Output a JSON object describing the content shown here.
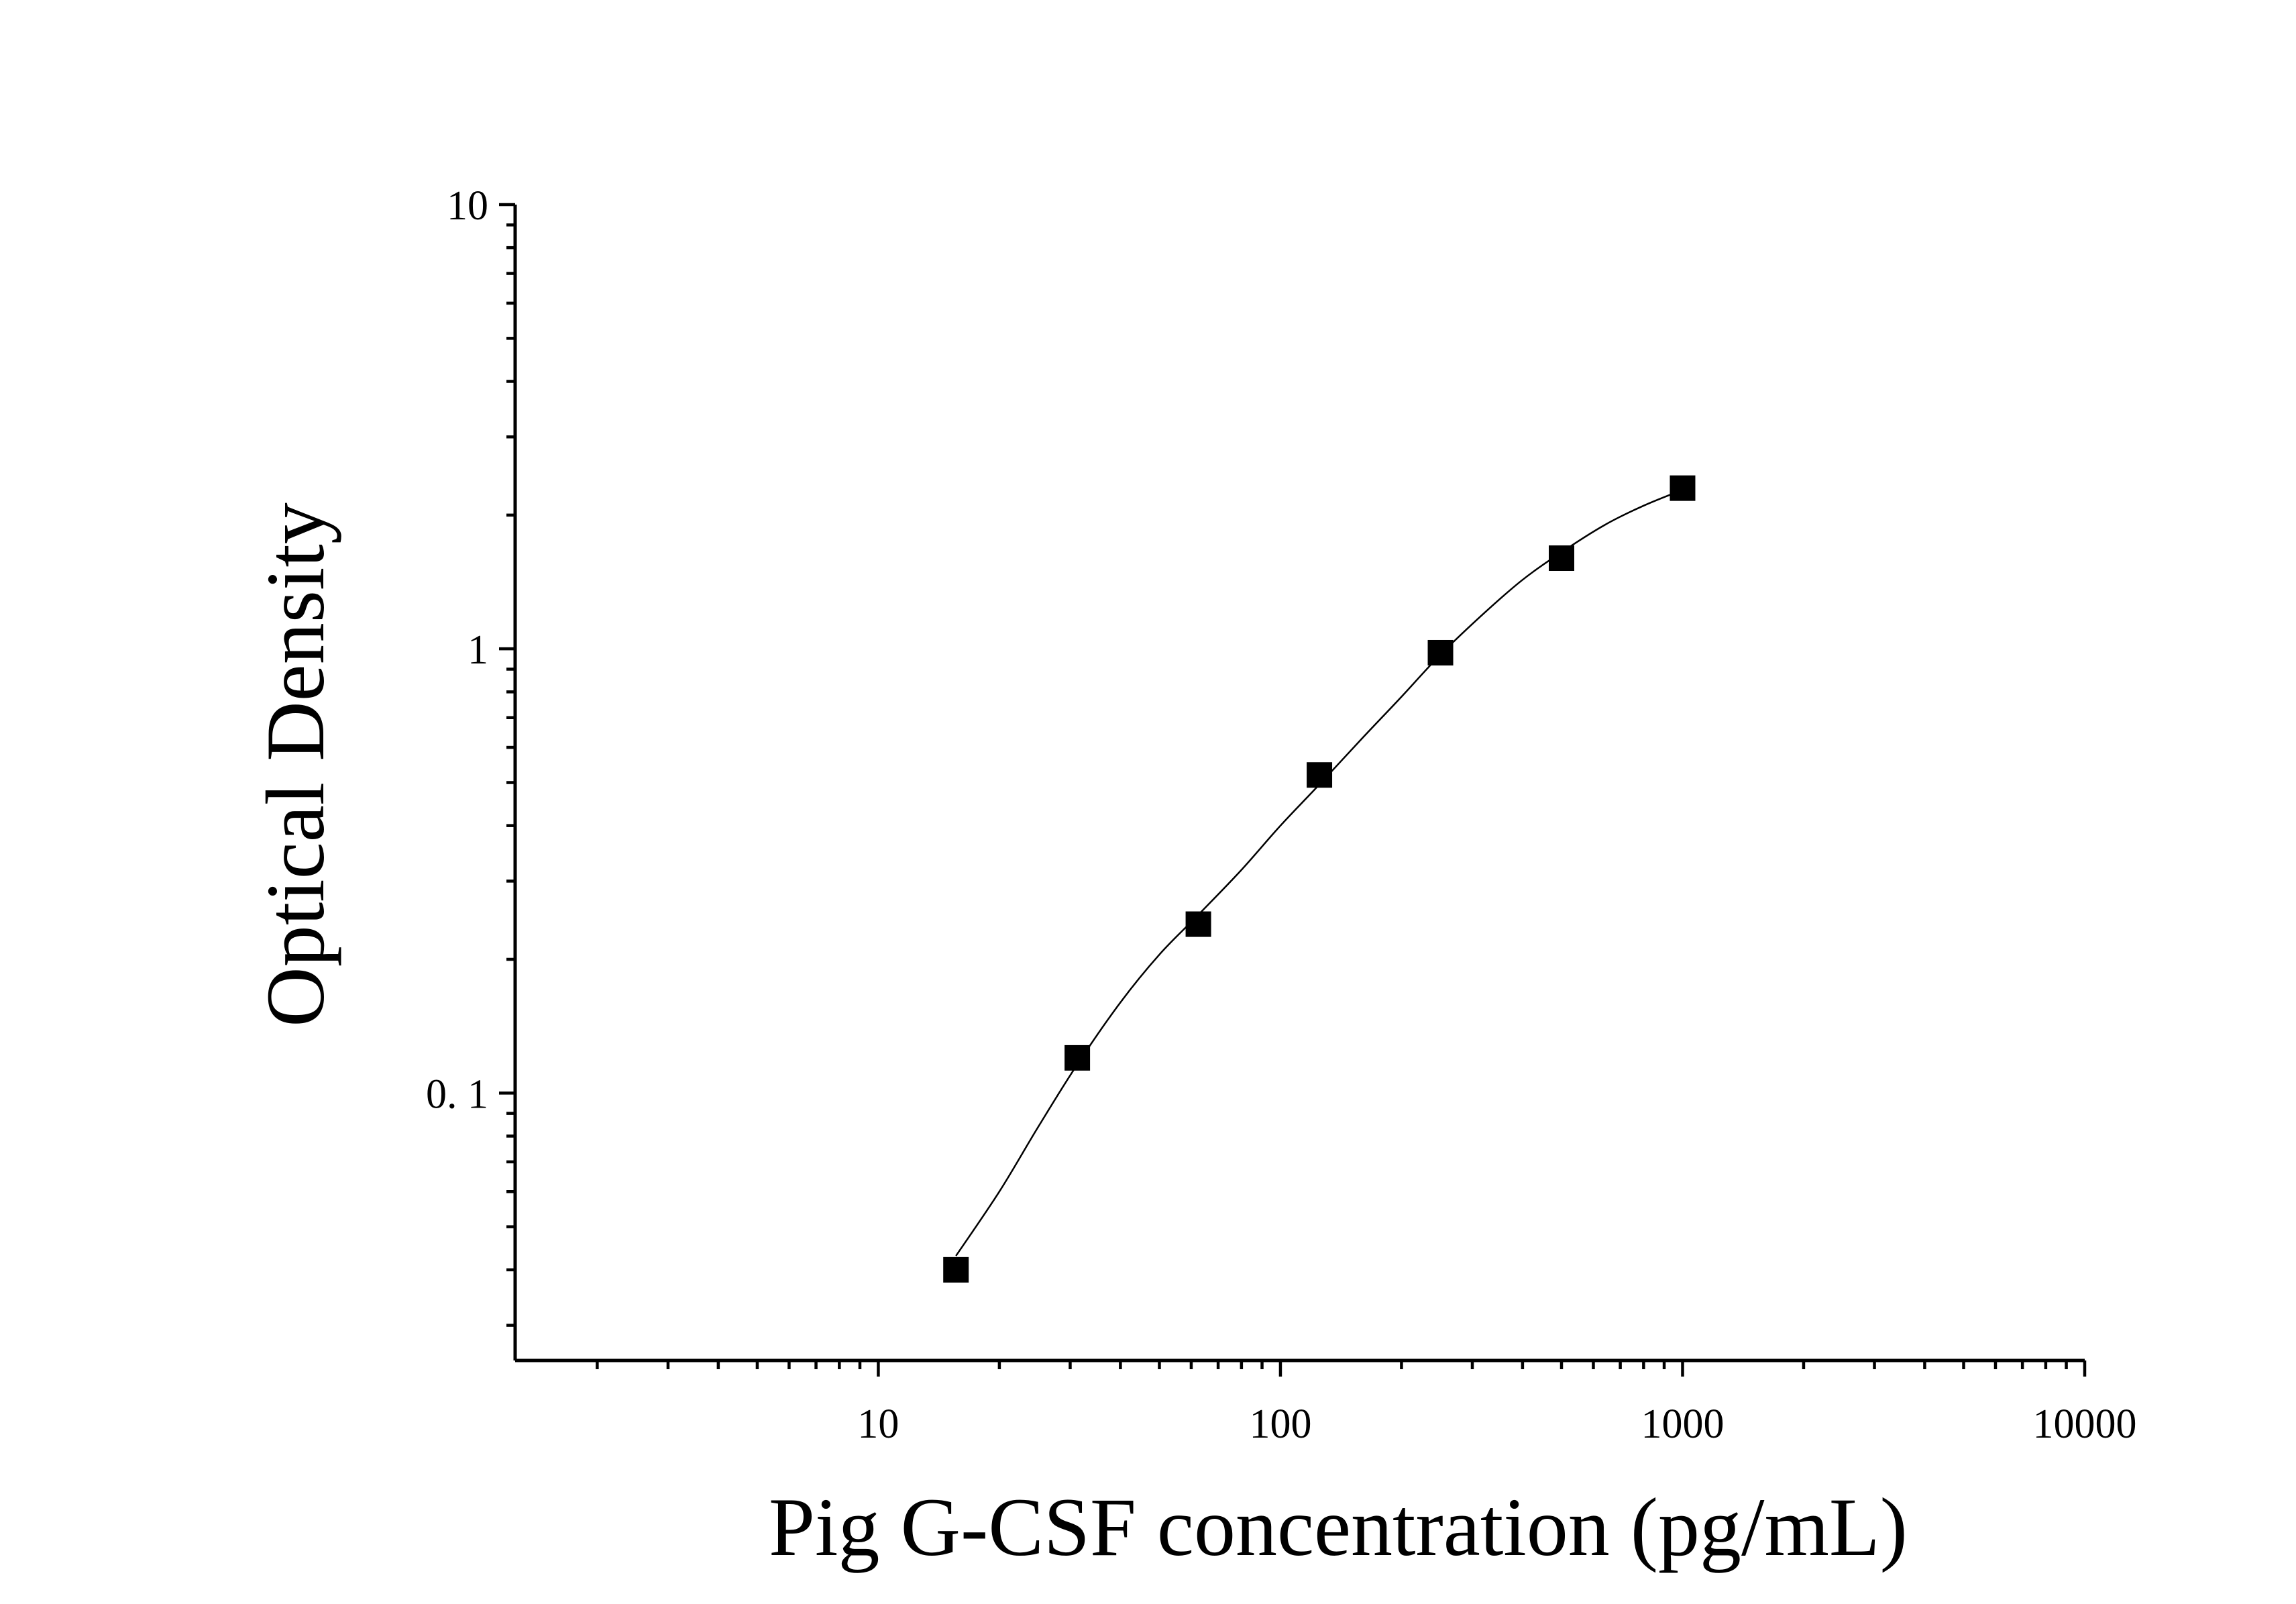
{
  "chart_data": {
    "type": "scatter",
    "xlabel": "Pig G-CSF concentration (pg/mL)",
    "ylabel": "Optical Density",
    "x_scale": "log",
    "y_scale": "log",
    "xlim": [
      1.25,
      10000
    ],
    "ylim": [
      0.025,
      10
    ],
    "x_tick_labels": [
      "10",
      "100",
      "1000",
      "10000"
    ],
    "x_tick_values": [
      10,
      100,
      1000,
      10000
    ],
    "y_tick_labels": [
      "0. 1",
      "1",
      "10"
    ],
    "y_tick_values": [
      0.1,
      1,
      10
    ],
    "grid": false,
    "series": [
      {
        "marker": "square",
        "color": "#000000",
        "x": [
          15.6,
          31.25,
          62.5,
          125,
          250,
          500,
          1000
        ],
        "y": [
          0.04,
          0.12,
          0.24,
          0.52,
          0.98,
          1.6,
          2.3
        ]
      }
    ],
    "fit_curve": {
      "type": "smooth",
      "color": "#000000",
      "x": [
        15.6,
        20,
        25,
        31.25,
        40,
        50,
        62.5,
        80,
        100,
        125,
        160,
        200,
        250,
        320,
        400,
        500,
        640,
        800,
        1000
      ],
      "y": [
        0.043,
        0.06,
        0.084,
        0.116,
        0.16,
        0.205,
        0.252,
        0.318,
        0.4,
        0.495,
        0.63,
        0.78,
        0.97,
        1.2,
        1.43,
        1.65,
        1.9,
        2.1,
        2.28
      ]
    }
  }
}
